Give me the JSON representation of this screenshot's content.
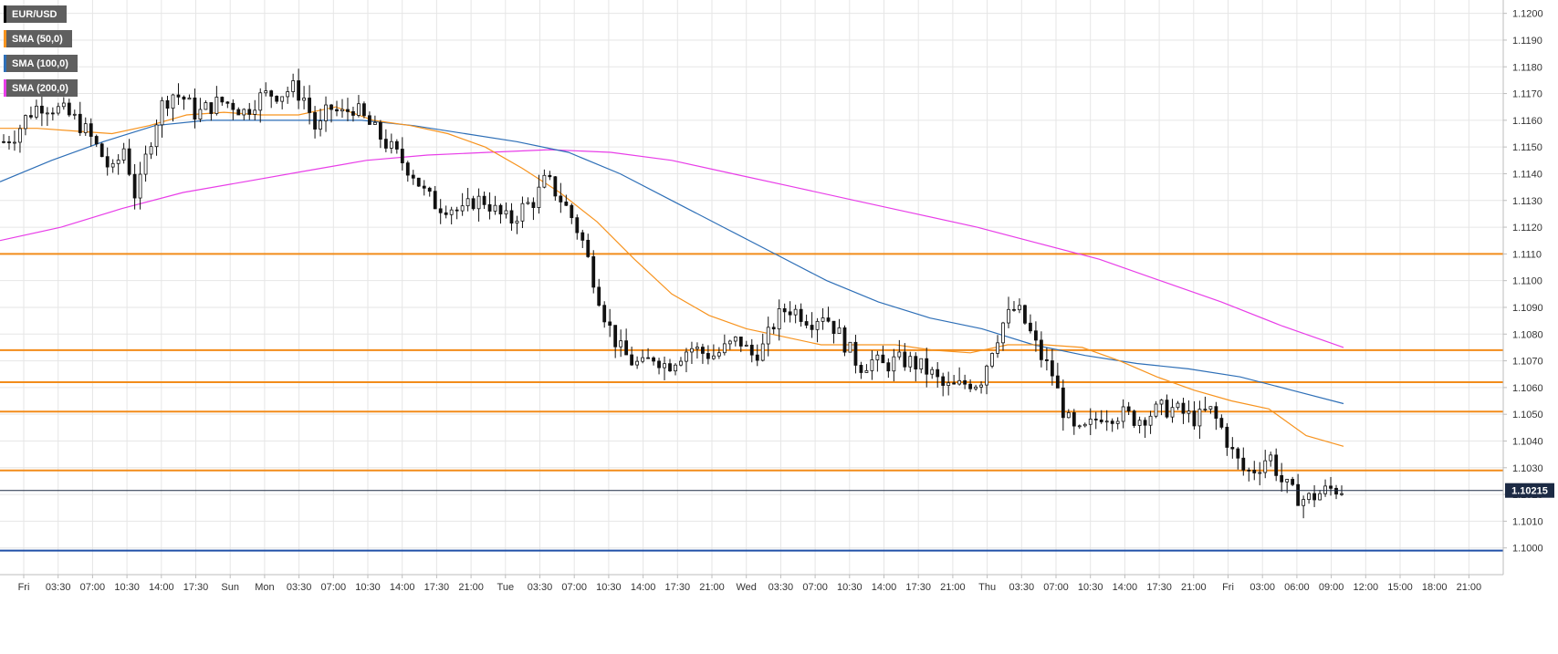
{
  "colors": {
    "sma50": "#f7931e",
    "sma100": "#2e6fb7",
    "sma200": "#e83ee8",
    "levels": "#f28c1a",
    "low_level": "#1f4fa8",
    "candle": "#111111",
    "grid": "#e6e6e6",
    "price_tag": "#1c2a44"
  },
  "legend": [
    {
      "label": "EUR/USD",
      "color": "#000000"
    },
    {
      "label": "SMA (50,0)",
      "color": "#f7931e"
    },
    {
      "label": "SMA (100,0)",
      "color": "#2e6fb7"
    },
    {
      "label": "SMA (200,0)",
      "color": "#e83ee8"
    }
  ],
  "current_price_label": "1.10215",
  "chart_data": {
    "type": "candlestick",
    "symbol": "EUR/USD",
    "ylim": [
      1.099,
      1.1205
    ],
    "y_ticks": [
      "1.1200",
      "1.1190",
      "1.1180",
      "1.1170",
      "1.1160",
      "1.1150",
      "1.1140",
      "1.1130",
      "1.1120",
      "1.1110",
      "1.1100",
      "1.1090",
      "1.1080",
      "1.1070",
      "1.1060",
      "1.1050",
      "1.1040",
      "1.1030",
      "1.1020",
      "1.1010",
      "1.1000"
    ],
    "x_ticks": [
      "Fri",
      "03:30",
      "07:00",
      "10:30",
      "14:00",
      "17:30",
      "Sun",
      "Mon",
      "03:30",
      "07:00",
      "10:30",
      "14:00",
      "17:30",
      "21:00",
      "Tue",
      "03:30",
      "07:00",
      "10:30",
      "14:00",
      "17:30",
      "21:00",
      "Wed",
      "03:30",
      "07:00",
      "10:30",
      "14:00",
      "17:30",
      "21:00",
      "Thu",
      "03:30",
      "07:00",
      "10:30",
      "14:00",
      "17:30",
      "21:00",
      "Fri",
      "03:00",
      "06:00",
      "09:00",
      "12:00",
      "15:00",
      "18:00",
      "21:00"
    ],
    "horizontal_levels": [
      1.111,
      1.1074,
      1.1062,
      1.1051,
      1.1029,
      1.0999
    ],
    "current_price": 1.10215,
    "price_path": [
      1.1152,
      1.1155,
      1.1162,
      1.1166,
      1.1165,
      1.1163,
      1.116,
      1.1155,
      1.1148,
      1.114,
      1.115,
      1.113,
      1.115,
      1.1165,
      1.117,
      1.1168,
      1.1162,
      1.1165,
      1.1167,
      1.1166,
      1.1163,
      1.1168,
      1.117,
      1.117,
      1.1172,
      1.1168,
      1.1155,
      1.1165,
      1.1162,
      1.1165,
      1.116,
      1.1155,
      1.115,
      1.1145,
      1.114,
      1.1132,
      1.1128,
      1.1128,
      1.1125,
      1.113,
      1.113,
      1.1125,
      1.1122,
      1.1127,
      1.113,
      1.1138,
      1.1132,
      1.1125,
      1.1115,
      1.11,
      1.1085,
      1.1075,
      1.107,
      1.1068,
      1.1072,
      1.1068,
      1.1072,
      1.1075,
      1.1073,
      1.1072,
      1.1075,
      1.1078,
      1.1072,
      1.1075,
      1.1085,
      1.109,
      1.1088,
      1.1085,
      1.1088,
      1.1082,
      1.1075,
      1.1068,
      1.107,
      1.1068,
      1.107,
      1.107,
      1.1068,
      1.1065,
      1.106,
      1.106,
      1.1062,
      1.1062,
      1.1075,
      1.1085,
      1.109,
      1.1082,
      1.1072,
      1.1065,
      1.105,
      1.1042,
      1.1045,
      1.105,
      1.105,
      1.105,
      1.1048,
      1.105,
      1.1052,
      1.1052,
      1.105,
      1.1048,
      1.1052,
      1.1045,
      1.1035,
      1.1028,
      1.103,
      1.1035,
      1.1025,
      1.102,
      1.1018,
      1.102,
      1.1022,
      1.1022
    ],
    "sma50": [
      1.1157,
      1.1157,
      1.1156,
      1.1155,
      1.1158,
      1.1162,
      1.1163,
      1.1162,
      1.1162,
      1.1165,
      1.116,
      1.1158,
      1.1155,
      1.115,
      1.1142,
      1.1133,
      1.1122,
      1.1108,
      1.1095,
      1.1087,
      1.1082,
      1.1079,
      1.1076,
      1.1076,
      1.1076,
      1.1074,
      1.1073,
      1.1076,
      1.1076,
      1.1075,
      1.107,
      1.1064,
      1.1059,
      1.1055,
      1.1052,
      1.1042,
      1.1038
    ],
    "sma100": [
      1.1137,
      1.1145,
      1.1152,
      1.1158,
      1.116,
      1.116,
      1.116,
      1.116,
      1.1158,
      1.1155,
      1.1152,
      1.1148,
      1.114,
      1.113,
      1.112,
      1.111,
      1.11,
      1.1092,
      1.1086,
      1.1082,
      1.1076,
      1.1072,
      1.1069,
      1.1067,
      1.1064,
      1.1059,
      1.1054
    ],
    "sma200": [
      1.1115,
      1.112,
      1.1127,
      1.1133,
      1.1137,
      1.1141,
      1.1145,
      1.1147,
      1.1148,
      1.1149,
      1.1148,
      1.1145,
      1.114,
      1.1135,
      1.113,
      1.1125,
      1.112,
      1.1114,
      1.1108,
      1.11,
      1.1092,
      1.1083,
      1.1075
    ]
  }
}
